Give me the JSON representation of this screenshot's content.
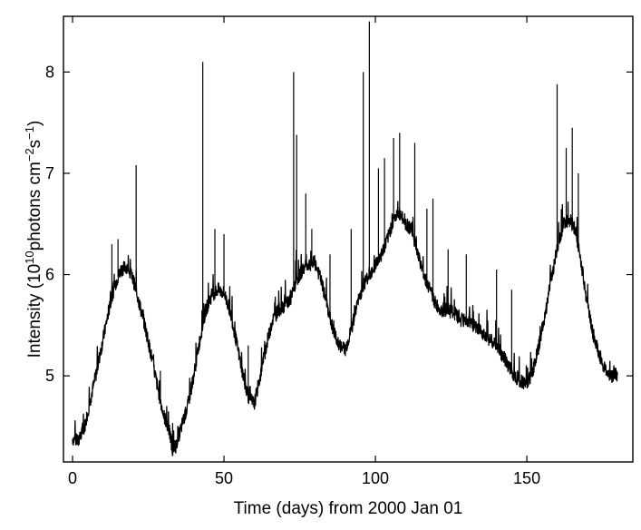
{
  "chart_data": {
    "type": "line",
    "title": "",
    "xlabel": "Time (days) from 2000 Jan 01",
    "ylabel": {
      "base": "Intensity (10",
      "exp1": "10",
      "mid": "photons cm",
      "exp2": "−2",
      "s": "s",
      "exp3": "−1",
      "close": ")"
    },
    "xlim": [
      -3,
      185
    ],
    "ylim": [
      4.15,
      8.55
    ],
    "xticks": [
      0,
      50,
      100,
      150
    ],
    "xtick_labels": [
      "0",
      "50",
      "100",
      "150"
    ],
    "yticks": [
      5,
      6,
      7,
      8
    ],
    "ytick_labels": [
      "5",
      "6",
      "7",
      "8"
    ],
    "grid": false,
    "legend": "none",
    "line_color": "#000000",
    "series": [
      {
        "x": [
          0,
          2,
          4,
          6,
          8,
          10,
          12,
          14,
          16,
          18,
          20,
          22,
          24,
          26,
          28,
          30,
          32,
          33,
          34,
          36,
          38,
          40,
          42,
          44,
          46,
          48,
          50,
          52,
          54,
          56,
          58,
          60,
          62,
          64,
          66,
          68,
          70,
          72,
          74,
          76,
          78,
          80,
          82,
          84,
          86,
          88,
          90,
          92,
          94,
          96,
          98,
          100,
          102,
          104,
          106,
          108,
          110,
          112,
          114,
          116,
          118,
          120,
          122,
          124,
          126,
          128,
          130,
          132,
          134,
          136,
          138,
          140,
          142,
          144,
          146,
          148,
          150,
          152,
          154,
          156,
          158,
          160,
          162,
          164,
          166,
          168,
          170,
          172,
          174,
          176,
          178,
          180
        ],
        "values": [
          4.38,
          4.35,
          4.5,
          4.78,
          5.05,
          5.35,
          5.65,
          5.9,
          6.05,
          6.08,
          5.95,
          5.72,
          5.48,
          5.2,
          4.9,
          4.62,
          4.45,
          4.28,
          4.3,
          4.5,
          4.7,
          5.0,
          5.35,
          5.65,
          5.8,
          5.85,
          5.82,
          5.65,
          5.35,
          5.05,
          4.8,
          4.72,
          5.0,
          5.3,
          5.55,
          5.65,
          5.7,
          5.75,
          5.95,
          6.05,
          6.1,
          6.12,
          5.95,
          5.7,
          5.45,
          5.3,
          5.25,
          5.45,
          5.7,
          5.9,
          6.0,
          6.1,
          6.2,
          6.35,
          6.55,
          6.6,
          6.5,
          6.45,
          6.2,
          6.0,
          5.85,
          5.7,
          5.65,
          5.65,
          5.62,
          5.55,
          5.55,
          5.5,
          5.45,
          5.42,
          5.35,
          5.3,
          5.2,
          5.1,
          5.0,
          4.95,
          4.92,
          5.05,
          5.3,
          5.6,
          5.95,
          6.25,
          6.5,
          6.55,
          6.45,
          6.1,
          5.7,
          5.4,
          5.2,
          5.05,
          5.0,
          5.02
        ]
      }
    ],
    "spikes": [
      {
        "x": 13,
        "y": 6.3
      },
      {
        "x": 15,
        "y": 6.35
      },
      {
        "x": 21,
        "y": 7.08
      },
      {
        "x": 29,
        "y": 5.05
      },
      {
        "x": 43,
        "y": 8.1
      },
      {
        "x": 47,
        "y": 6.45
      },
      {
        "x": 50,
        "y": 6.4
      },
      {
        "x": 58,
        "y": 5.3
      },
      {
        "x": 73,
        "y": 8.0
      },
      {
        "x": 74,
        "y": 7.38
      },
      {
        "x": 77,
        "y": 6.8
      },
      {
        "x": 79,
        "y": 6.45
      },
      {
        "x": 85,
        "y": 6.2
      },
      {
        "x": 92,
        "y": 6.45
      },
      {
        "x": 96,
        "y": 8.0
      },
      {
        "x": 98,
        "y": 8.5
      },
      {
        "x": 101,
        "y": 7.05
      },
      {
        "x": 103,
        "y": 7.15
      },
      {
        "x": 106,
        "y": 7.35
      },
      {
        "x": 108,
        "y": 7.4
      },
      {
        "x": 113,
        "y": 7.3
      },
      {
        "x": 117,
        "y": 6.65
      },
      {
        "x": 119,
        "y": 6.75
      },
      {
        "x": 124,
        "y": 6.25
      },
      {
        "x": 130,
        "y": 6.2
      },
      {
        "x": 140,
        "y": 6.05
      },
      {
        "x": 145,
        "y": 5.85
      },
      {
        "x": 160,
        "y": 7.88
      },
      {
        "x": 163,
        "y": 7.25
      },
      {
        "x": 165,
        "y": 7.45
      },
      {
        "x": 167,
        "y": 7.0
      }
    ]
  }
}
